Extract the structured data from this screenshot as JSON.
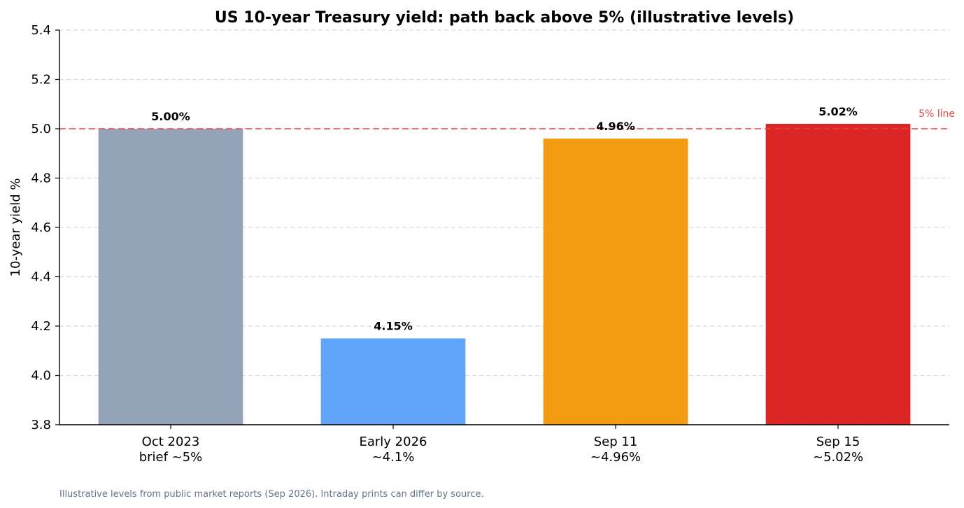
{
  "chart_data": {
    "type": "bar",
    "title": "US 10-year Treasury yield: path back above 5% (illustrative levels)",
    "xlabel": "",
    "ylabel": "10-year yield %",
    "categories": [
      [
        "Oct 2023",
        "brief ~5%"
      ],
      [
        "Early 2026",
        "~4.1%"
      ],
      [
        "Sep 11",
        "~4.96%"
      ],
      [
        "Sep 15",
        "~5.02%"
      ]
    ],
    "values": [
      5.0,
      4.15,
      4.96,
      5.02
    ],
    "value_labels": [
      "5.00%",
      "4.15%",
      "4.96%",
      "5.02%"
    ],
    "bar_colors": [
      "#94a3b8",
      "#60a5fa",
      "#f39c12",
      "#dc2626"
    ],
    "ylim": [
      3.8,
      5.4
    ],
    "yticks": [
      "3.8",
      "4.0",
      "4.2",
      "4.4",
      "4.6",
      "4.8",
      "5.0",
      "5.2",
      "5.4"
    ],
    "grid": "horizontal, dashed",
    "reference_line": {
      "value": 5.0,
      "label": "5% line",
      "color": "#ef4444"
    },
    "footnote": "Illustrative levels from public market reports (Sep 2026). Intraday prints can differ by source."
  }
}
